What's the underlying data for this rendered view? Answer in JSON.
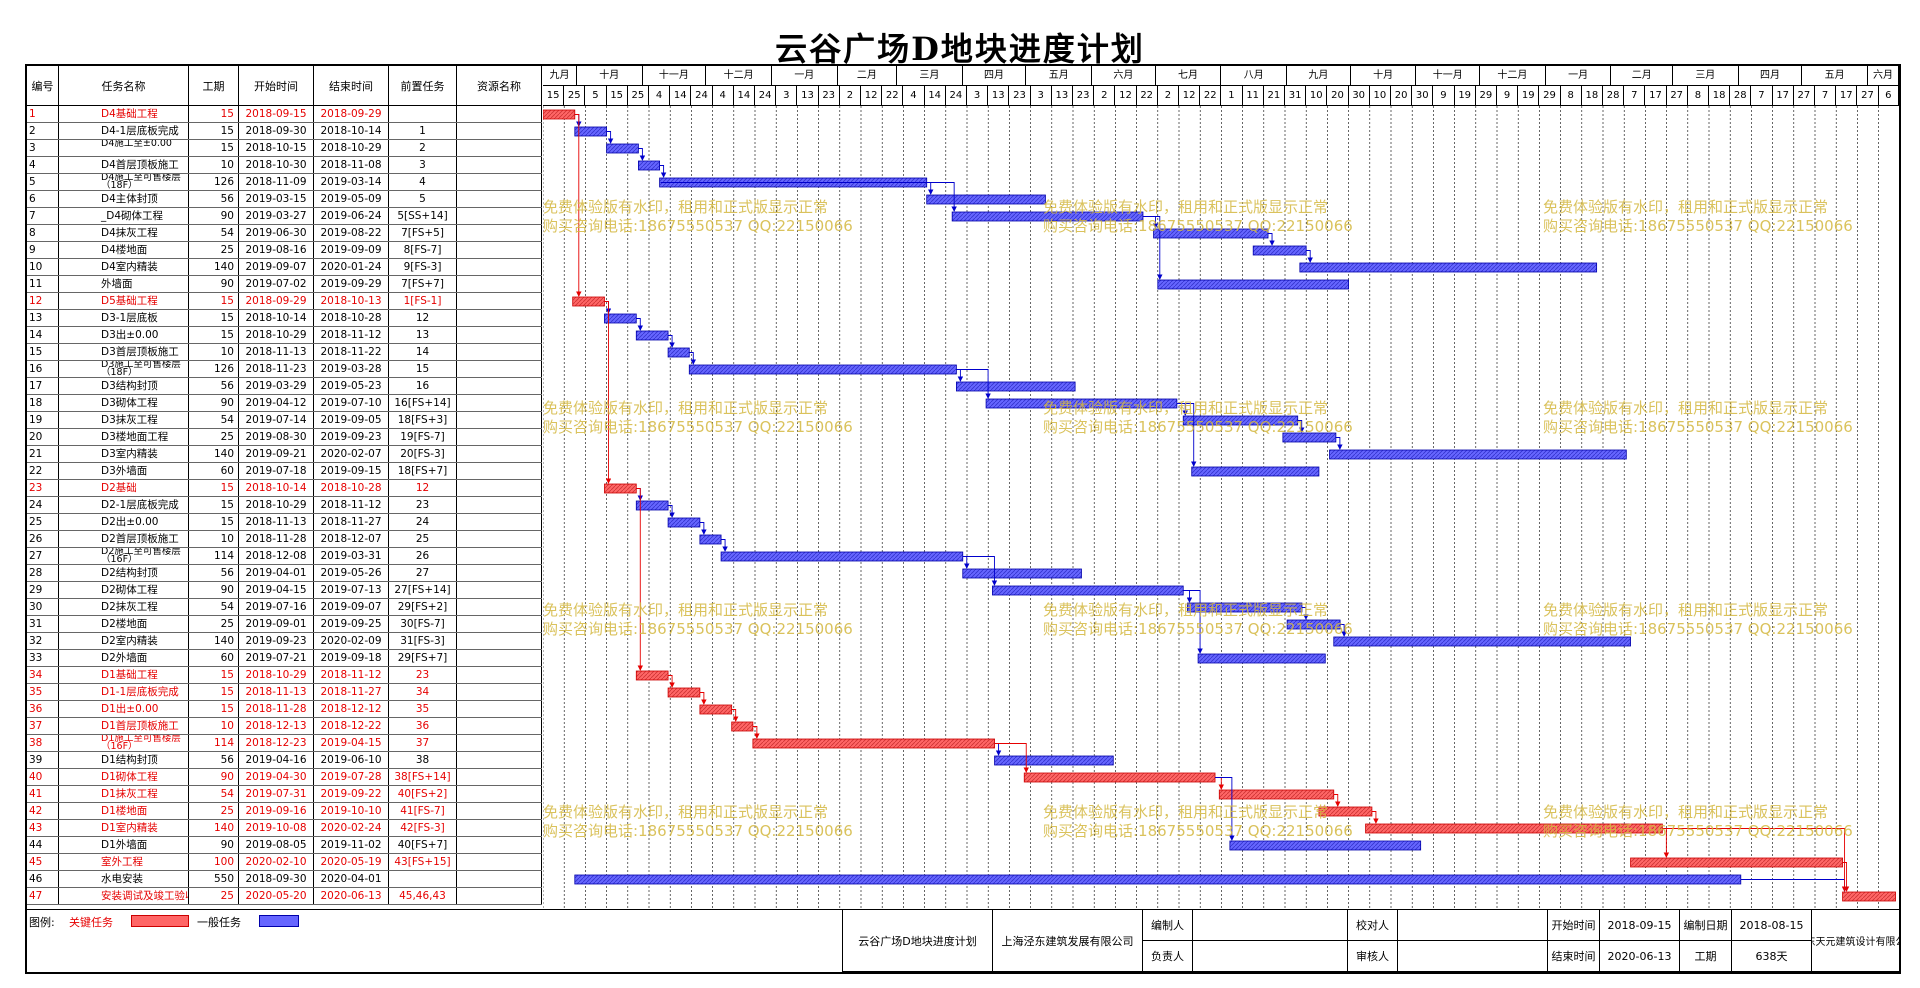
{
  "title": "云谷广场D地块进度计划",
  "headers": {
    "id": "编号",
    "name": "任务名称",
    "dur": "工期",
    "start": "开始时间",
    "end": "结束时间",
    "pred": "前置任务",
    "res": "资源名称"
  },
  "colors": {
    "critical": "#ff6666",
    "general": "#6666ff",
    "critical_text": "#e60000"
  },
  "chart_data": {
    "type": "gantt",
    "months": [
      "九月",
      "十月",
      "十一月",
      "十二月",
      "一月",
      "二月",
      "三月",
      "四月",
      "五月",
      "六月",
      "七月",
      "八月",
      "九月",
      "十月",
      "十一月",
      "十二月",
      "一月",
      "二月",
      "三月",
      "四月",
      "五月",
      "六月"
    ],
    "days": [
      "15",
      "25",
      "5",
      "15",
      "25",
      "4",
      "14",
      "24",
      "4",
      "14",
      "24",
      "3",
      "13",
      "23",
      "2",
      "12",
      "22",
      "4",
      "14",
      "24",
      "3",
      "13",
      "23",
      "3",
      "13",
      "23",
      "2",
      "12",
      "22",
      "2",
      "12",
      "22",
      "1",
      "11",
      "21",
      "31",
      "10",
      "20",
      "30",
      "10",
      "20",
      "30",
      "9",
      "19",
      "29",
      "9",
      "19",
      "29",
      "8",
      "18",
      "28",
      "7",
      "17",
      "27",
      "8",
      "18",
      "28",
      "7",
      "17",
      "27",
      "7",
      "17",
      "27",
      "6"
    ],
    "tasks": [
      {
        "id": "1",
        "name": "D4基础工程",
        "dur": "15",
        "start": "2018-09-15",
        "end": "2018-09-29",
        "pred": "",
        "crit": true
      },
      {
        "id": "2",
        "name": "D4-1层底板完成",
        "dur": "15",
        "start": "2018-09-30",
        "end": "2018-10-14",
        "pred": "1",
        "crit": false
      },
      {
        "id": "3",
        "name": "D4施工至±0.00",
        "dur": "15",
        "start": "2018-10-15",
        "end": "2018-10-29",
        "pred": "2",
        "crit": false
      },
      {
        "id": "4",
        "name": "D4首层顶板施工",
        "dur": "10",
        "start": "2018-10-30",
        "end": "2018-11-08",
        "pred": "3",
        "crit": false
      },
      {
        "id": "5",
        "name": "D4施工至可售楼层（18F）",
        "dur": "126",
        "start": "2018-11-09",
        "end": "2019-03-14",
        "pred": "4",
        "crit": false
      },
      {
        "id": "6",
        "name": "D4主体封顶",
        "dur": "56",
        "start": "2019-03-15",
        "end": "2019-05-09",
        "pred": "5",
        "crit": false
      },
      {
        "id": "7",
        "name": "_D4砌体工程",
        "dur": "90",
        "start": "2019-03-27",
        "end": "2019-06-24",
        "pred": "5[SS+14]",
        "crit": false
      },
      {
        "id": "8",
        "name": "D4抹灰工程",
        "dur": "54",
        "start": "2019-06-30",
        "end": "2019-08-22",
        "pred": "7[FS+5]",
        "crit": false
      },
      {
        "id": "9",
        "name": "D4楼地面",
        "dur": "25",
        "start": "2019-08-16",
        "end": "2019-09-09",
        "pred": "8[FS-7]",
        "crit": false
      },
      {
        "id": "10",
        "name": "D4室内精装",
        "dur": "140",
        "start": "2019-09-07",
        "end": "2020-01-24",
        "pred": "9[FS-3]",
        "crit": false
      },
      {
        "id": "11",
        "name": "外墙面",
        "dur": "90",
        "start": "2019-07-02",
        "end": "2019-09-29",
        "pred": "7[FS+7]",
        "crit": false
      },
      {
        "id": "12",
        "name": "D5基础工程",
        "dur": "15",
        "start": "2018-09-29",
        "end": "2018-10-13",
        "pred": "1[FS-1]",
        "crit": true
      },
      {
        "id": "13",
        "name": "D3-1层底板",
        "dur": "15",
        "start": "2018-10-14",
        "end": "2018-10-28",
        "pred": "12",
        "crit": false
      },
      {
        "id": "14",
        "name": "D3出±0.00",
        "dur": "15",
        "start": "2018-10-29",
        "end": "2018-11-12",
        "pred": "13",
        "crit": false
      },
      {
        "id": "15",
        "name": "D3首层顶板施工",
        "dur": "10",
        "start": "2018-11-13",
        "end": "2018-11-22",
        "pred": "14",
        "crit": false
      },
      {
        "id": "16",
        "name": "D3施工至可售楼层（18F）",
        "dur": "126",
        "start": "2018-11-23",
        "end": "2019-03-28",
        "pred": "15",
        "crit": false
      },
      {
        "id": "17",
        "name": "D3结构封顶",
        "dur": "56",
        "start": "2019-03-29",
        "end": "2019-05-23",
        "pred": "16",
        "crit": false
      },
      {
        "id": "18",
        "name": "D3砌体工程",
        "dur": "90",
        "start": "2019-04-12",
        "end": "2019-07-10",
        "pred": "16[FS+14]",
        "crit": false
      },
      {
        "id": "19",
        "name": "D3抹灰工程",
        "dur": "54",
        "start": "2019-07-14",
        "end": "2019-09-05",
        "pred": "18[FS+3]",
        "crit": false
      },
      {
        "id": "20",
        "name": "D3楼地面工程",
        "dur": "25",
        "start": "2019-08-30",
        "end": "2019-09-23",
        "pred": "19[FS-7]",
        "crit": false
      },
      {
        "id": "21",
        "name": "D3室内精装",
        "dur": "140",
        "start": "2019-09-21",
        "end": "2020-02-07",
        "pred": "20[FS-3]",
        "crit": false
      },
      {
        "id": "22",
        "name": "D3外墙面",
        "dur": "60",
        "start": "2019-07-18",
        "end": "2019-09-15",
        "pred": "18[FS+7]",
        "crit": false
      },
      {
        "id": "23",
        "name": "D2基础",
        "dur": "15",
        "start": "2018-10-14",
        "end": "2018-10-28",
        "pred": "12",
        "crit": true
      },
      {
        "id": "24",
        "name": "D2-1层底板完成",
        "dur": "15",
        "start": "2018-10-29",
        "end": "2018-11-12",
        "pred": "23",
        "crit": false
      },
      {
        "id": "25",
        "name": "D2出±0.00",
        "dur": "15",
        "start": "2018-11-13",
        "end": "2018-11-27",
        "pred": "24",
        "crit": false
      },
      {
        "id": "26",
        "name": "D2首层顶板施工",
        "dur": "10",
        "start": "2018-11-28",
        "end": "2018-12-07",
        "pred": "25",
        "crit": false
      },
      {
        "id": "27",
        "name": "D2施工至可售楼层（16F）",
        "dur": "114",
        "start": "2018-12-08",
        "end": "2019-03-31",
        "pred": "26",
        "crit": false
      },
      {
        "id": "28",
        "name": "D2结构封顶",
        "dur": "56",
        "start": "2019-04-01",
        "end": "2019-05-26",
        "pred": "27",
        "crit": false
      },
      {
        "id": "29",
        "name": "D2砌体工程",
        "dur": "90",
        "start": "2019-04-15",
        "end": "2019-07-13",
        "pred": "27[FS+14]",
        "crit": false
      },
      {
        "id": "30",
        "name": "D2抹灰工程",
        "dur": "54",
        "start": "2019-07-16",
        "end": "2019-09-07",
        "pred": "29[FS+2]",
        "crit": false
      },
      {
        "id": "31",
        "name": "D2楼地面",
        "dur": "25",
        "start": "2019-09-01",
        "end": "2019-09-25",
        "pred": "30[FS-7]",
        "crit": false
      },
      {
        "id": "32",
        "name": "D2室内精装",
        "dur": "140",
        "start": "2019-09-23",
        "end": "2020-02-09",
        "pred": "31[FS-3]",
        "crit": false
      },
      {
        "id": "33",
        "name": "D2外墙面",
        "dur": "60",
        "start": "2019-07-21",
        "end": "2019-09-18",
        "pred": "29[FS+7]",
        "crit": false
      },
      {
        "id": "34",
        "name": "D1基础工程",
        "dur": "15",
        "start": "2018-10-29",
        "end": "2018-11-12",
        "pred": "23",
        "crit": true
      },
      {
        "id": "35",
        "name": "D1-1层底板完成",
        "dur": "15",
        "start": "2018-11-13",
        "end": "2018-11-27",
        "pred": "34",
        "crit": true
      },
      {
        "id": "36",
        "name": "D1出±0.00",
        "dur": "15",
        "start": "2018-11-28",
        "end": "2018-12-12",
        "pred": "35",
        "crit": true
      },
      {
        "id": "37",
        "name": "D1首层顶板施工",
        "dur": "10",
        "start": "2018-12-13",
        "end": "2018-12-22",
        "pred": "36",
        "crit": true
      },
      {
        "id": "38",
        "name": "D1施工至可售楼层（16F）",
        "dur": "114",
        "start": "2018-12-23",
        "end": "2019-04-15",
        "pred": "37",
        "crit": true
      },
      {
        "id": "39",
        "name": "D1结构封顶",
        "dur": "56",
        "start": "2019-04-16",
        "end": "2019-06-10",
        "pred": "38",
        "crit": false
      },
      {
        "id": "40",
        "name": "D1砌体工程",
        "dur": "90",
        "start": "2019-04-30",
        "end": "2019-07-28",
        "pred": "38[FS+14]",
        "crit": true
      },
      {
        "id": "41",
        "name": "D1抹灰工程",
        "dur": "54",
        "start": "2019-07-31",
        "end": "2019-09-22",
        "pred": "40[FS+2]",
        "crit": true
      },
      {
        "id": "42",
        "name": "D1楼地面",
        "dur": "25",
        "start": "2019-09-16",
        "end": "2019-10-10",
        "pred": "41[FS-7]",
        "crit": true
      },
      {
        "id": "43",
        "name": "D1室内精装",
        "dur": "140",
        "start": "2019-10-08",
        "end": "2020-02-24",
        "pred": "42[FS-3]",
        "crit": true
      },
      {
        "id": "44",
        "name": "D1外墙面",
        "dur": "90",
        "start": "2019-08-05",
        "end": "2019-11-02",
        "pred": "40[FS+7]",
        "crit": false
      },
      {
        "id": "45",
        "name": "室外工程",
        "dur": "100",
        "start": "2020-02-10",
        "end": "2020-05-19",
        "pred": "43[FS+15]",
        "crit": true
      },
      {
        "id": "46",
        "name": "水电安装",
        "dur": "550",
        "start": "2018-09-30",
        "end": "2020-04-01",
        "pred": "",
        "crit": false
      },
      {
        "id": "47",
        "name": "安装调试及竣工验收",
        "dur": "25",
        "start": "2020-05-20",
        "end": "2020-06-13",
        "pred": "45,46,43",
        "crit": true
      }
    ]
  },
  "legend": {
    "label": "图例:",
    "critical": "关键任务",
    "general": "一般任务"
  },
  "footer": {
    "plan": "云谷广场D地块进度计划",
    "company": "上海泾东建筑发展有限公司",
    "editor": "编制人",
    "checker": "校对人",
    "owner": "负责人",
    "reviewer": "审核人",
    "start_label": "开始时间",
    "start_val": "2018-09-15",
    "date_label": "编制日期",
    "date_val": "2018-08-15",
    "end_label": "结束时间",
    "end_val": "2020-06-13",
    "dur_label": "工期",
    "dur_val": "638天",
    "designer": "广东天元建筑设计有限公司"
  },
  "watermark": {
    "line1": "免费体验版有水印，租用和正式版显示正常",
    "line2": "购买咨询电话:18675550537 QQ:22150066"
  }
}
